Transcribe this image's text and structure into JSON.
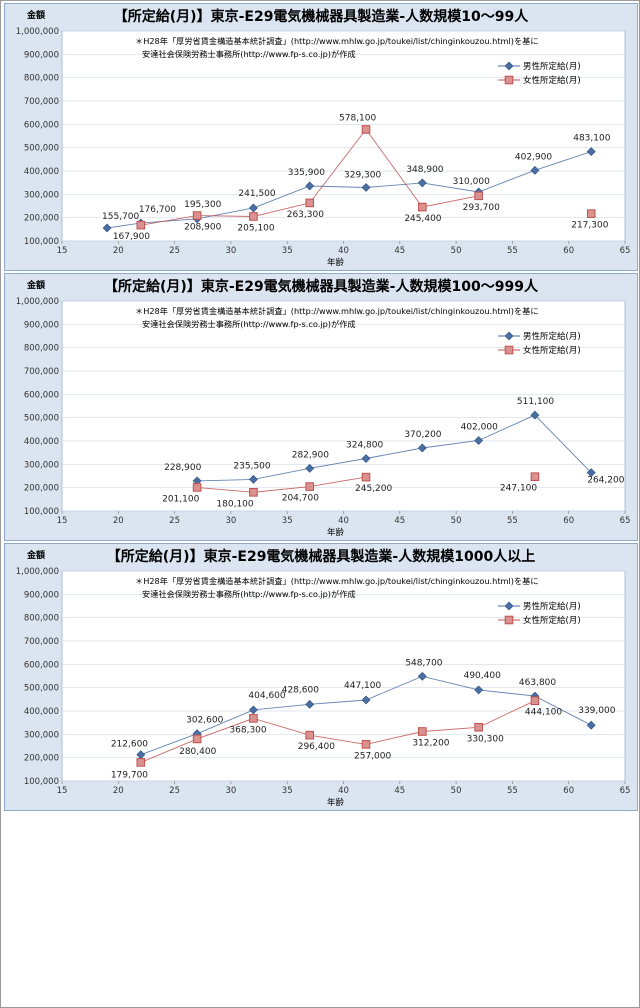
{
  "chart_data": [
    {
      "type": "line",
      "title": "【所定給(月)】東京-E29電気機械器具製造業-人数規模10～99人",
      "note_line1": "＊H28年「厚労省賃金構造基本統計調査」(http://www.mhlw.go.jp/toukei/list/chinginkouzou.html)を基に",
      "note_line2": "安達社会保険労務士事務所(http://www.fp-s.co.jp)が作成",
      "ylabel": "金額",
      "xlabel": "年齢",
      "xlim": [
        15,
        65
      ],
      "ylim": [
        100000,
        1000000
      ],
      "x_ticks": [
        15,
        20,
        25,
        30,
        35,
        40,
        45,
        50,
        55,
        60,
        65
      ],
      "y_ticks": [
        100000,
        200000,
        300000,
        400000,
        500000,
        600000,
        700000,
        800000,
        900000,
        1000000
      ],
      "legend_position": "top-right",
      "series": [
        {
          "name": "男性所定給(月)",
          "color": "#4a6fa5",
          "marker": "diamond",
          "x": [
            19,
            22,
            27,
            32,
            37,
            42,
            47,
            52,
            57,
            62
          ],
          "y": [
            155700,
            176700,
            195300,
            241500,
            335900,
            329300,
            348900,
            310000,
            402900,
            483100
          ],
          "labels": [
            "155,700",
            "176,700",
            "195,300",
            "241,500",
            "335,900",
            "329,300",
            "348,900",
            "310,000",
            "402,900",
            "483,100"
          ]
        },
        {
          "name": "女性所定給(月)",
          "color": "#c0504d",
          "marker": "square",
          "x": [
            22,
            27,
            32,
            37,
            42,
            47,
            52,
            62
          ],
          "y": [
            167900,
            208900,
            205100,
            263300,
            578100,
            245400,
            293700,
            217300
          ],
          "labels": [
            "167,900",
            "208,900",
            "205,100",
            "263,300",
            "578,100",
            "245,400",
            "293,700",
            "217,300"
          ],
          "breaks_before": [
            7
          ]
        }
      ]
    },
    {
      "type": "line",
      "title": "【所定給(月)】東京-E29電気機械器具製造業-人数規模100～999人",
      "note_line1": "＊H28年「厚労省賃金構造基本統計調査」(http://www.mhlw.go.jp/toukei/list/chinginkouzou.html)を基に",
      "note_line2": "安達社会保険労務士事務所(http://www.fp-s.co.jp)が作成",
      "ylabel": "金額",
      "xlabel": "年齢",
      "xlim": [
        15,
        65
      ],
      "ylim": [
        100000,
        1000000
      ],
      "x_ticks": [
        15,
        20,
        25,
        30,
        35,
        40,
        45,
        50,
        55,
        60,
        65
      ],
      "y_ticks": [
        100000,
        200000,
        300000,
        400000,
        500000,
        600000,
        700000,
        800000,
        900000,
        1000000
      ],
      "legend_position": "top-right",
      "series": [
        {
          "name": "男性所定給(月)",
          "color": "#4a6fa5",
          "marker": "diamond",
          "x": [
            27,
            32,
            37,
            42,
            47,
            52,
            57,
            62
          ],
          "y": [
            228900,
            235500,
            282900,
            324800,
            370200,
            402000,
            511100,
            264200
          ],
          "labels": [
            "228,900",
            "235,500",
            "282,900",
            "324,800",
            "370,200",
            "402,000",
            "511,100",
            "264,200"
          ]
        },
        {
          "name": "女性所定給(月)",
          "color": "#c0504d",
          "marker": "square",
          "x": [
            27,
            32,
            37,
            42,
            57
          ],
          "y": [
            201100,
            180100,
            204700,
            245200,
            247100
          ],
          "labels": [
            "201,100",
            "180,100",
            "204,700",
            "245,200",
            "247,100"
          ],
          "breaks_before": [
            4
          ]
        }
      ]
    },
    {
      "type": "line",
      "title": "【所定給(月)】東京-E29電気機械器具製造業-人数規模1000人以上",
      "note_line1": "＊H28年「厚労省賃金構造基本統計調査」(http://www.mhlw.go.jp/toukei/list/chinginkouzou.html)を基に",
      "note_line2": "安達社会保険労務士事務所(http://www.fp-s.co.jp)が作成",
      "ylabel": "金額",
      "xlabel": "年齢",
      "xlim": [
        15,
        65
      ],
      "ylim": [
        100000,
        1000000
      ],
      "x_ticks": [
        15,
        20,
        25,
        30,
        35,
        40,
        45,
        50,
        55,
        60,
        65
      ],
      "y_ticks": [
        100000,
        200000,
        300000,
        400000,
        500000,
        600000,
        700000,
        800000,
        900000,
        1000000
      ],
      "legend_position": "top-right",
      "series": [
        {
          "name": "男性所定給(月)",
          "color": "#4a6fa5",
          "marker": "diamond",
          "x": [
            22,
            27,
            32,
            37,
            42,
            47,
            52,
            57,
            62
          ],
          "y": [
            212600,
            302600,
            404600,
            428600,
            447100,
            548700,
            490400,
            463800,
            339000
          ],
          "labels": [
            "212,600",
            "302,600",
            "404,600",
            "428,600",
            "447,100",
            "548,700",
            "490,400",
            "463,800",
            "339,000"
          ]
        },
        {
          "name": "女性所定給(月)",
          "color": "#c0504d",
          "marker": "square",
          "x": [
            22,
            27,
            32,
            37,
            42,
            47,
            52,
            57
          ],
          "y": [
            179700,
            280400,
            368300,
            296400,
            257000,
            312200,
            330300,
            444100
          ],
          "labels": [
            "179,700",
            "280,400",
            "368,300",
            "296,400",
            "257,000",
            "312,200",
            "330,300",
            "444,100"
          ]
        }
      ]
    }
  ]
}
